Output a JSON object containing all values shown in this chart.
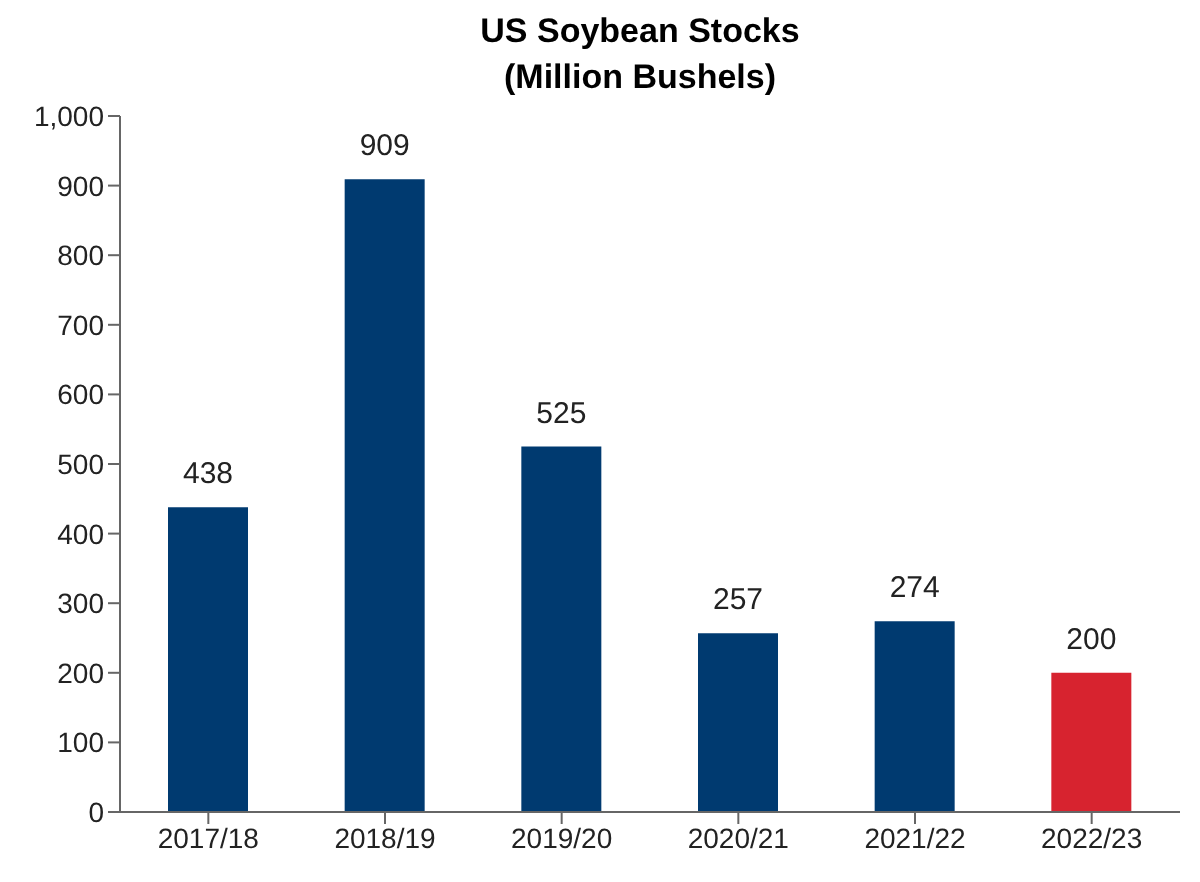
{
  "chart_data": {
    "type": "bar",
    "title": "US Soybean Stocks",
    "subtitle": "(Million Bushels)",
    "categories": [
      "2017/18",
      "2018/19",
      "2019/20",
      "2020/21",
      "2021/22",
      "2022/23"
    ],
    "values": [
      438,
      909,
      525,
      257,
      274,
      200
    ],
    "colors": [
      "#003a70",
      "#003a70",
      "#003a70",
      "#003a70",
      "#003a70",
      "#d7232f"
    ],
    "ylim": [
      0,
      1000
    ],
    "yticks": [
      0,
      100,
      200,
      300,
      400,
      500,
      600,
      700,
      800,
      900,
      {
        "value": 1000,
        "label": "1,000"
      }
    ],
    "data_labels": true,
    "grid": false,
    "legend": false
  }
}
